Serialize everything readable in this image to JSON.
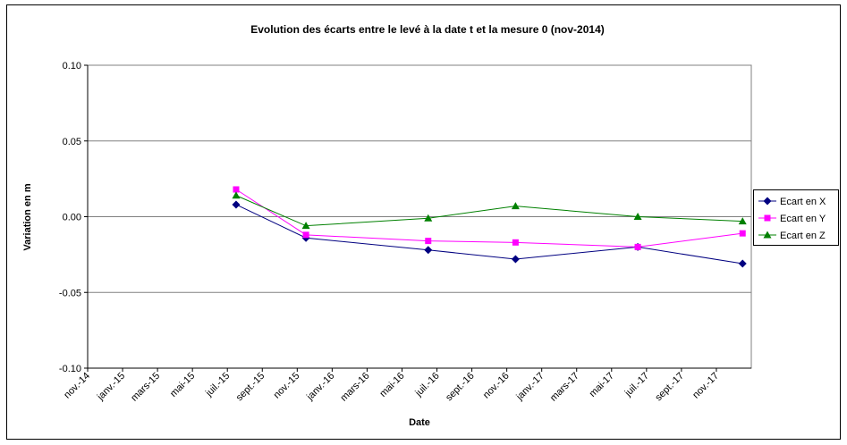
{
  "chart_data": {
    "type": "line",
    "title": "Evolution des écarts entre le levé à la date t et la mesure 0 (nov-2014)",
    "x_label": "Date",
    "y_label": "Variation en m",
    "x": [
      "2015-07",
      "2015-11",
      "2016-06",
      "2016-11",
      "2017-06",
      "2017-12"
    ],
    "xlim": [
      "2014-11",
      "2018-01"
    ],
    "xticks": [
      {
        "value": "2014-11",
        "label": "nov.-14"
      },
      {
        "value": "2015-01",
        "label": "janv.-15"
      },
      {
        "value": "2015-03",
        "label": "mars-15"
      },
      {
        "value": "2015-05",
        "label": "mai-15"
      },
      {
        "value": "2015-07",
        "label": "juil.-15"
      },
      {
        "value": "2015-09",
        "label": "sept.-15"
      },
      {
        "value": "2015-11",
        "label": "nov.-15"
      },
      {
        "value": "2016-01",
        "label": "janv.-16"
      },
      {
        "value": "2016-03",
        "label": "mars-16"
      },
      {
        "value": "2016-05",
        "label": "mai-16"
      },
      {
        "value": "2016-07",
        "label": "juil.-16"
      },
      {
        "value": "2016-09",
        "label": "sept.-16"
      },
      {
        "value": "2016-11",
        "label": "nov.-16"
      },
      {
        "value": "2017-01",
        "label": "janv.-17"
      },
      {
        "value": "2017-03",
        "label": "mars-17"
      },
      {
        "value": "2017-05",
        "label": "mai-17"
      },
      {
        "value": "2017-07",
        "label": "juil.-17"
      },
      {
        "value": "2017-09",
        "label": "sept.-17"
      },
      {
        "value": "2017-11",
        "label": "nov.-17"
      }
    ],
    "ylim": [
      -0.1,
      0.1
    ],
    "yticks": [
      {
        "value": -0.1,
        "label": "-0.10"
      },
      {
        "value": -0.05,
        "label": "-0.05"
      },
      {
        "value": 0,
        "label": "0.00"
      },
      {
        "value": 0.05,
        "label": "0.05"
      },
      {
        "value": 0.1,
        "label": "0.10"
      }
    ],
    "grid": true,
    "legend": "right",
    "series": [
      {
        "name": "Ecart en X",
        "color": "#000080",
        "marker": "diamond",
        "values": [
          0.008,
          -0.014,
          -0.022,
          -0.028,
          -0.02,
          -0.031
        ]
      },
      {
        "name": "Ecart en Y",
        "color": "#ff00ff",
        "marker": "square",
        "values": [
          0.018,
          -0.012,
          -0.016,
          -0.017,
          -0.02,
          -0.011
        ]
      },
      {
        "name": "Ecart en Z",
        "color": "#008000",
        "marker": "triangle",
        "values": [
          0.014,
          -0.006,
          -0.001,
          0.007,
          0.0,
          -0.003
        ]
      }
    ]
  }
}
